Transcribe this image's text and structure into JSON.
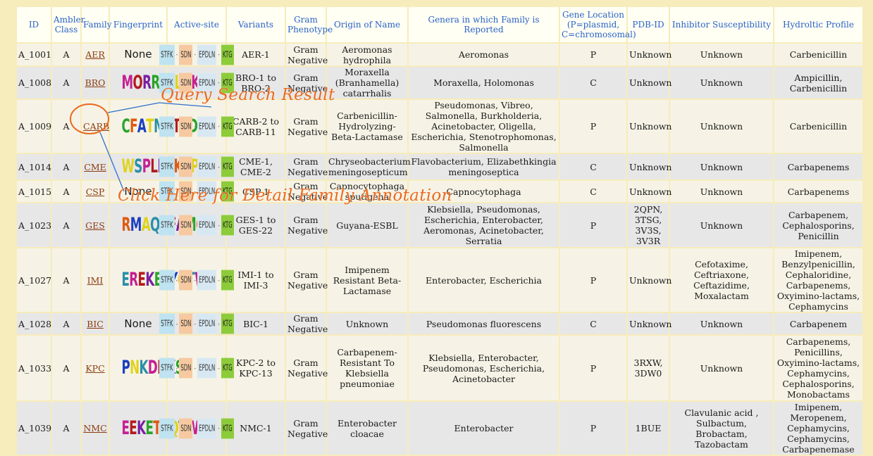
{
  "headers": [
    "ID",
    "Ambler Class",
    "Family",
    "Fingerprint",
    "Active-site",
    "Variants",
    "Gram Phenotype",
    "Origin of Name",
    "Genera in which Family is Reported",
    "Gene Location (P=plasmid, C=chromosomal)",
    "PDB-ID",
    "Inhibitor Susceptibility",
    "Hydroltic Profile"
  ],
  "active_site": [
    "STFK",
    "SDN",
    "EPDLN",
    "KTG"
  ],
  "rows": [
    {
      "id": "A_1001",
      "cls": "A",
      "family": "AER",
      "fp": "None",
      "variants": "AER-1",
      "gram": "Gram Negative",
      "origin": "Aeromonas hydrophila",
      "genera": "Aeromonas",
      "loc": "P",
      "pdb": "Unknown",
      "inhib": "Unknown",
      "hydro": "Carbenicillin"
    },
    {
      "id": "A_1008",
      "cls": "A",
      "family": "BRO",
      "fp": "MORRLELQKT",
      "variants": "BRO-1 to BRO-2",
      "gram": "Gram Negative",
      "origin": "Moraxella (Branhamella) catarrhalis",
      "genera": "Moraxella, Holomonas",
      "loc": "C",
      "pdb": "Unknown",
      "inhib": "Unknown",
      "hydro": "Ampicillin, Carbenicillin"
    },
    {
      "id": "A_1009",
      "cls": "A",
      "family": "CARB",
      "fp": "CFATMTTSDN",
      "variants": "CARB-2 to CARB-11",
      "gram": "Gram Negative",
      "origin": "Carbenicillin-Hydrolyzing-Beta-Lactamase",
      "genera": "Pseudomonas, Vibreo, Salmonella, Burkholderia, Acinetobacter, Oligella, Escherichia, Stenotrophomonas, Salmonella",
      "loc": "P",
      "pdb": "Unknown",
      "inhib": "Unknown",
      "hydro": "Carbenicillin"
    },
    {
      "id": "A_1014",
      "cls": "A",
      "family": "CME",
      "fp": "WSPLREKYPC",
      "variants": "CME-1, CME-2",
      "gram": "Gram Negative",
      "origin": "Chryseobacterium meningosepticum",
      "genera": "Flavobacterium, Elizabethkingia meningoseptica",
      "loc": "C",
      "pdb": "Unknown",
      "inhib": "Unknown",
      "hydro": "Carbapenems"
    },
    {
      "id": "A_1015",
      "cls": "A",
      "family": "CSP",
      "fp": "None",
      "variants": "CSP-1",
      "gram": "Gram Negative",
      "origin": "Capnocytophaga sputigena",
      "genera": "Capnocytophaga",
      "loc": "C",
      "pdb": "Unknown",
      "inhib": "Unknown",
      "hydro": "Carbapenems"
    },
    {
      "id": "A_1023",
      "cls": "A",
      "family": "GES",
      "fp": "RMAQRFAMC",
      "variants": "GES-1 to GES-22",
      "gram": "Gram Negative",
      "origin": "Guyana-ESBL",
      "genera": "Klebsiella, Pseudomonas, Escherichia, Enterobacter, Aeromonas, Acinetobacter, Serratia",
      "loc": "P",
      "pdb": "2QPN, 3TSG, 3V3S, 3V3R",
      "inhib": "Unknown",
      "hydro": "Carbapenem, Cephalosporins, Penicillin"
    },
    {
      "id": "A_1027",
      "cls": "A",
      "family": "IMI",
      "fp": "EREKETYQTW",
      "variants": "IMI-1 to IMI-3",
      "gram": "Gram Negative",
      "origin": "Imipenem Resistant Beta-Lactamase",
      "genera": "Enterobacter, Escherichia",
      "loc": "P",
      "pdb": "Unknown",
      "inhib": "Cefotaxime, Ceftriaxone, Ceftazidime, Moxalactam",
      "hydro": "Imipenem, Benzylpenicillin, Cephaloridine, Carbapenems, Oxyimino-lactams, Cephamycins"
    },
    {
      "id": "A_1028",
      "cls": "A",
      "family": "BIC",
      "fp": "None",
      "variants": "BIC-1",
      "gram": "Gram Negative",
      "origin": "Unknown",
      "genera": "Pseudomonas fluorescens",
      "loc": "C",
      "pdb": "Unknown",
      "inhib": "Unknown",
      "hydro": "Carbapenem"
    },
    {
      "id": "A_1033",
      "cls": "A",
      "family": "KPC",
      "fp": "PNKDDKSE",
      "variants": "KPC-2 to KPC-13",
      "gram": "Gram Negative",
      "origin": "Carbapenem-Resistant To Klebsiella pneumoniae",
      "genera": "Klebsiella, Enterobacter, Pseudomonas, Escherichia, Acinetobacter",
      "loc": "P",
      "pdb": "3RXW, 3DW0",
      "inhib": "Unknown",
      "hydro": "Carbapenems, Penicillins, Oxyimino-lactams, Cephamycins, Cephalosporins, Monobactams"
    },
    {
      "id": "A_1039",
      "cls": "A",
      "family": "NMC",
      "fp": "EEKETYQTW",
      "variants": "NMC-1",
      "gram": "Gram Negative",
      "origin": "Enterobacter cloacae",
      "genera": "Enterobacter",
      "loc": "P",
      "pdb": "1BUE",
      "inhib": "Clavulanic acid , Sulbactum, Brobactam, Tazobactam",
      "hydro": "Imipenem, Meropenem, Cephamycins, Cephamycins, Carbapenemase"
    }
  ],
  "annotations": {
    "query": "Query Search Result",
    "detail": "Click Here for Detail Family Annotation"
  },
  "colors": {
    "background": "#f7ecbb",
    "header_text": "#2a62c8",
    "link": "#8a3c10",
    "annotation": "#ea6a1e",
    "arrow": "#2f6fc9"
  },
  "fp_palette": [
    "#1c3fbf",
    "#c51f93",
    "#2aa42a",
    "#e0d21a",
    "#b21c1c",
    "#e05a10",
    "#2a8fa8",
    "#7a1fa2"
  ]
}
